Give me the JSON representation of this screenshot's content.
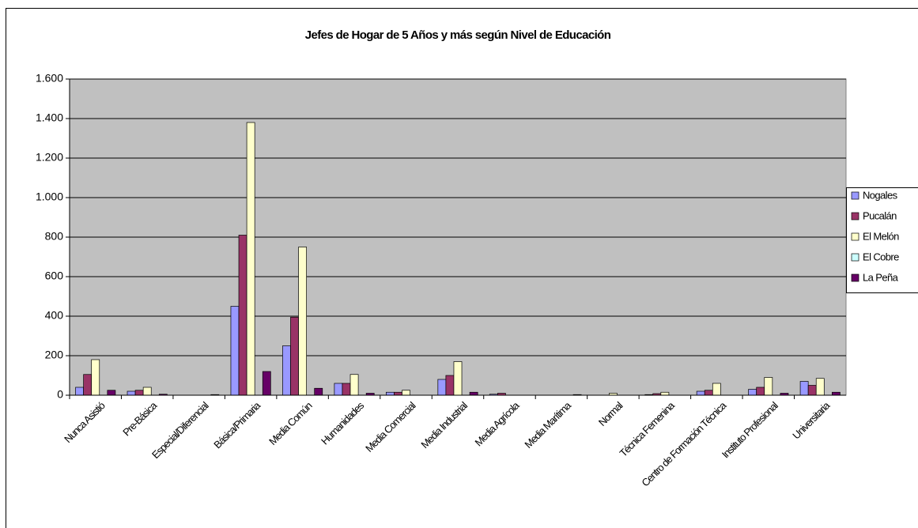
{
  "chart_data": {
    "type": "bar",
    "title": "Jefes de Hogar de 5 Años y más según Nivel de Educación",
    "categories": [
      "Nunca Asistió",
      "Pre-Básica",
      "Especial/Diferencial",
      "Básica/Primaria",
      "Media Común",
      "Humanidades",
      "Media Comercial",
      "Media Industrial",
      "Media Agrícola",
      "Media Marítima",
      "Normal",
      "Técnica Femenina",
      "Centro de Formación Técnica",
      "Instituto Profesional",
      "Universitaria"
    ],
    "series": [
      {
        "name": "Nogales",
        "color": "#9999ff",
        "values": [
          40,
          20,
          0,
          450,
          250,
          60,
          15,
          80,
          5,
          0,
          0,
          3,
          20,
          30,
          70
        ]
      },
      {
        "name": "Pucalán",
        "color": "#993366",
        "values": [
          105,
          25,
          0,
          810,
          395,
          60,
          15,
          100,
          10,
          0,
          0,
          8,
          25,
          40,
          50
        ]
      },
      {
        "name": "El Melón",
        "color": "#ffffcc",
        "values": [
          180,
          40,
          0,
          1380,
          750,
          105,
          25,
          170,
          0,
          0,
          10,
          15,
          60,
          90,
          85
        ]
      },
      {
        "name": "El Cobre",
        "color": "#ccffff",
        "values": [
          0,
          0,
          0,
          0,
          0,
          0,
          0,
          0,
          0,
          0,
          0,
          0,
          0,
          0,
          0
        ]
      },
      {
        "name": "La Peña",
        "color": "#660066",
        "values": [
          25,
          5,
          3,
          120,
          35,
          10,
          0,
          15,
          0,
          3,
          0,
          0,
          0,
          10,
          15
        ]
      }
    ],
    "ylim": [
      0,
      1600
    ],
    "yticks": [
      0,
      200,
      400,
      600,
      800,
      {
        "value": 1000,
        "label": "1.000"
      },
      {
        "value": 1200,
        "label": "1.200"
      },
      {
        "value": 1400,
        "label": "1.400"
      },
      {
        "value": 1600,
        "label": "1.600"
      }
    ],
    "grid": true,
    "legend": "right"
  }
}
